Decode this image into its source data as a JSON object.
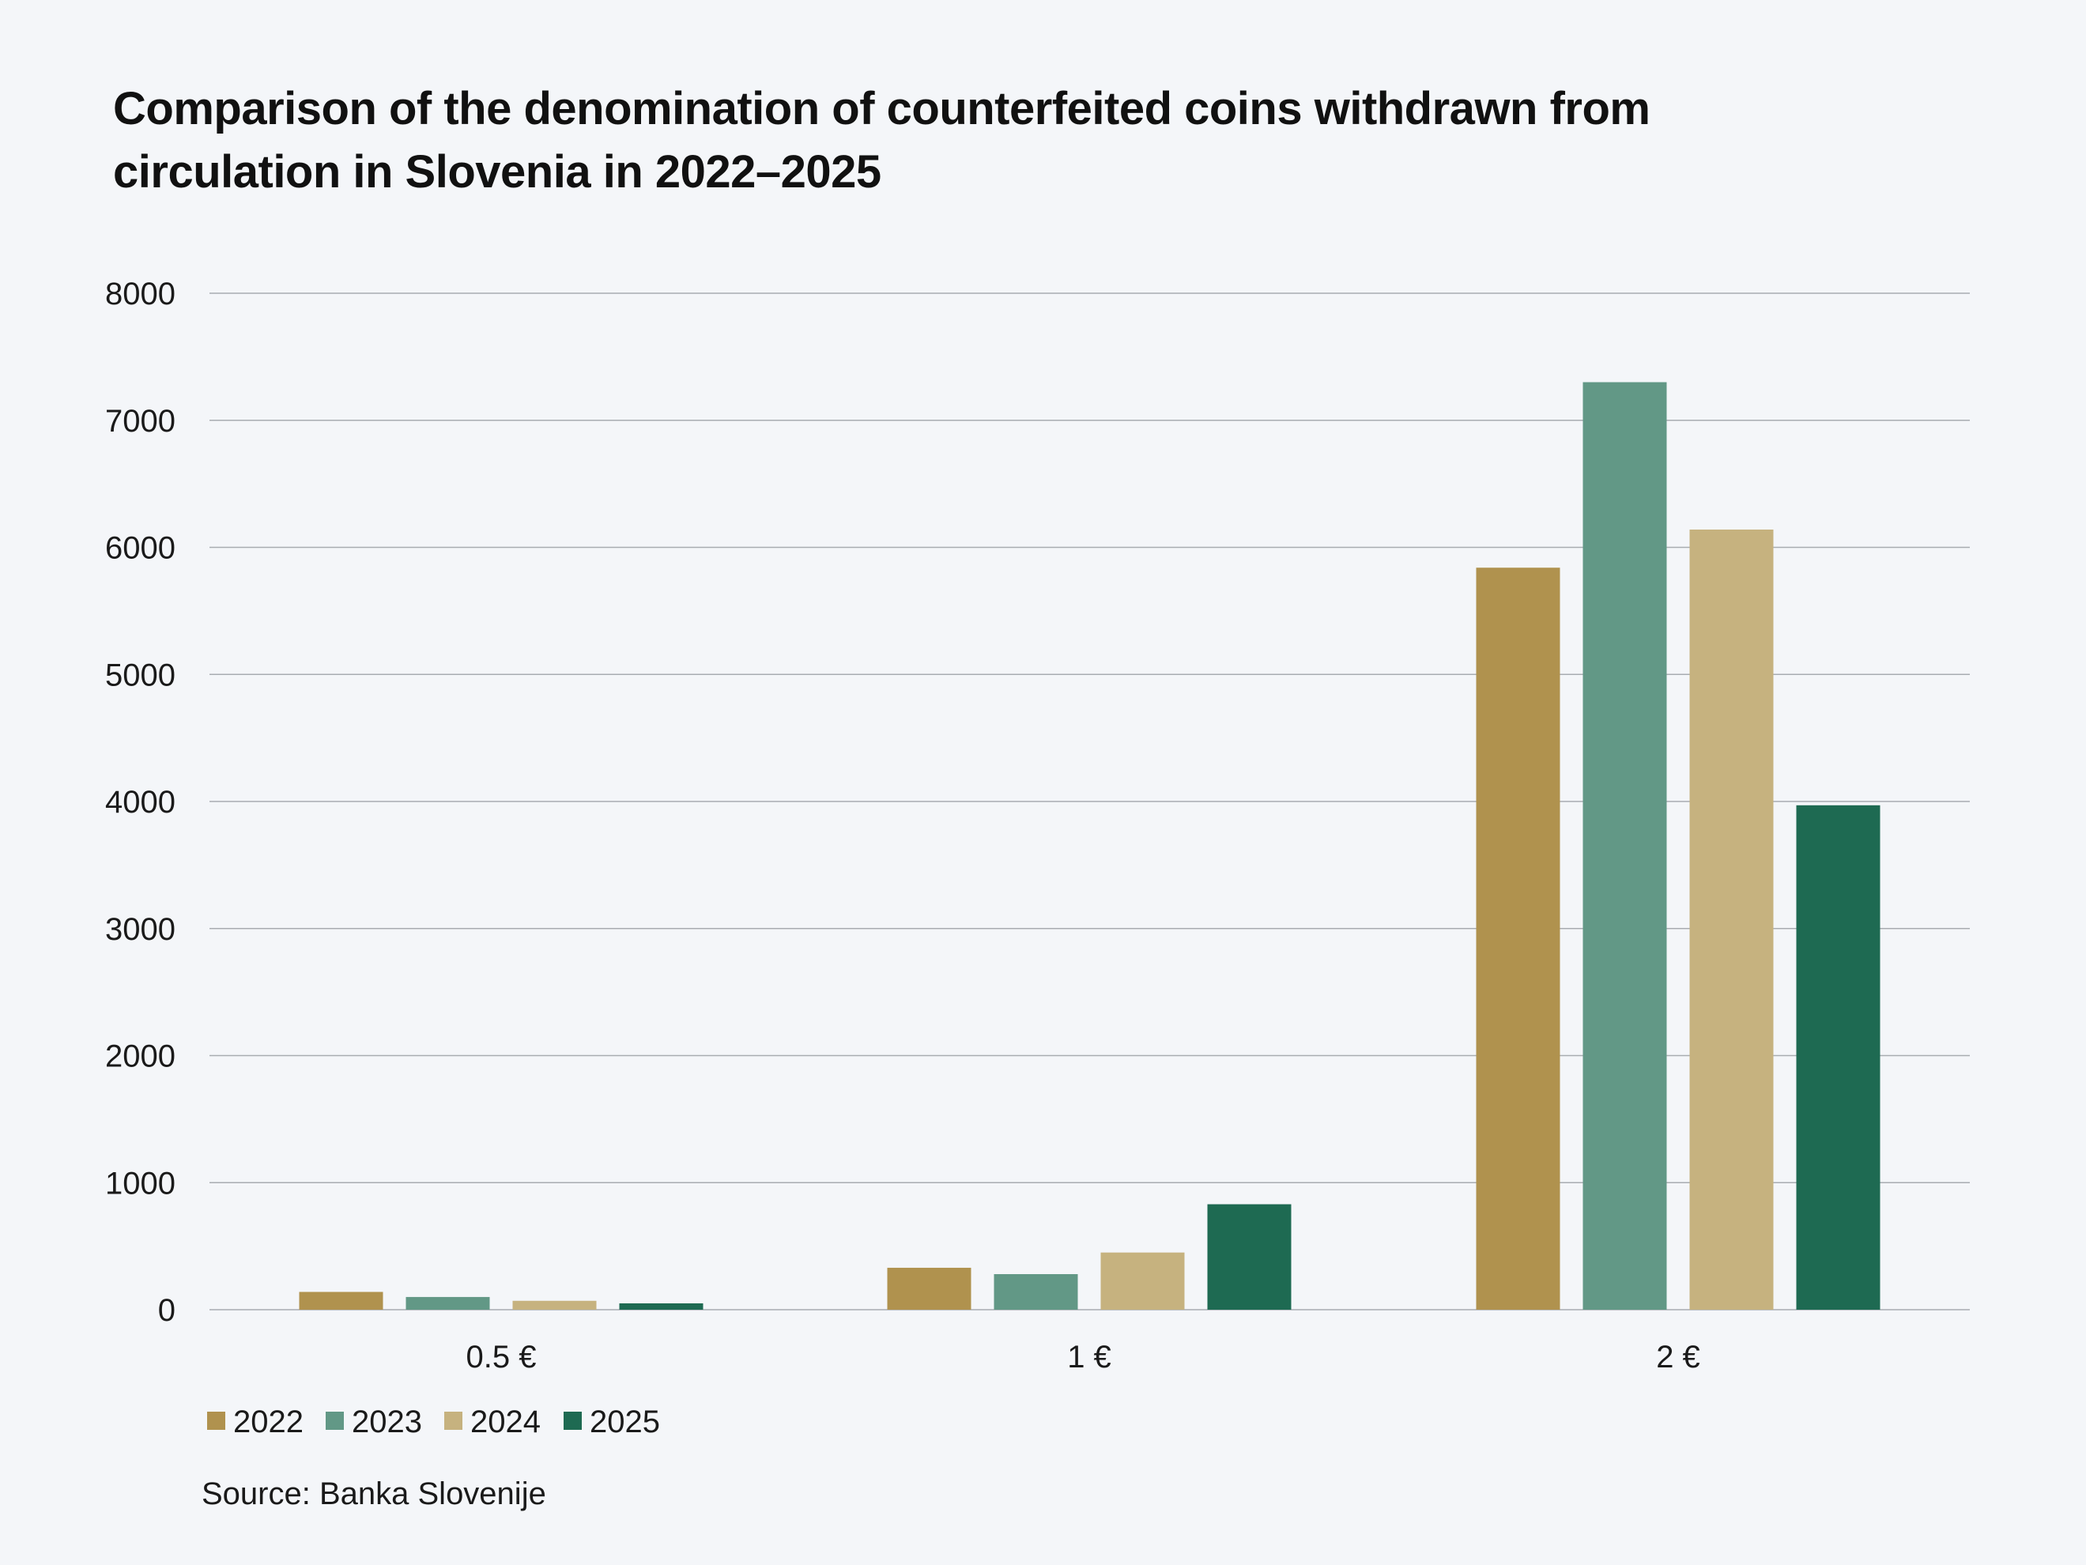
{
  "title_lines": [
    "Comparison of the denomination of counterfeited coins withdrawn from",
    "circulation in Slovenia in 2022–2025"
  ],
  "source": "Source: Banka Slovenije",
  "colors": {
    "background": "#f4f6f9",
    "gridline": "#a8acb1",
    "text": "#1a1a1a"
  },
  "chart_data": {
    "type": "bar",
    "title": "Comparison of the denomination of counterfeited coins withdrawn from circulation in Slovenia in 2022–2025",
    "xlabel": "",
    "ylabel": "",
    "categories": [
      "0.5 €",
      "1 €",
      "2 €"
    ],
    "ylim": [
      0,
      8000
    ],
    "yticks": [
      0,
      1000,
      2000,
      3000,
      4000,
      5000,
      6000,
      7000,
      8000
    ],
    "grid": true,
    "legend_position": "bottom-left",
    "series": [
      {
        "name": "2022",
        "color": "#b0924e",
        "values": [
          140,
          330,
          5840
        ]
      },
      {
        "name": "2023",
        "color": "#629886",
        "values": [
          100,
          280,
          7300
        ]
      },
      {
        "name": "2024",
        "color": "#c6b27f",
        "values": [
          70,
          450,
          6140
        ]
      },
      {
        "name": "2025",
        "color": "#1e6a52",
        "values": [
          50,
          830,
          3970
        ]
      }
    ]
  }
}
